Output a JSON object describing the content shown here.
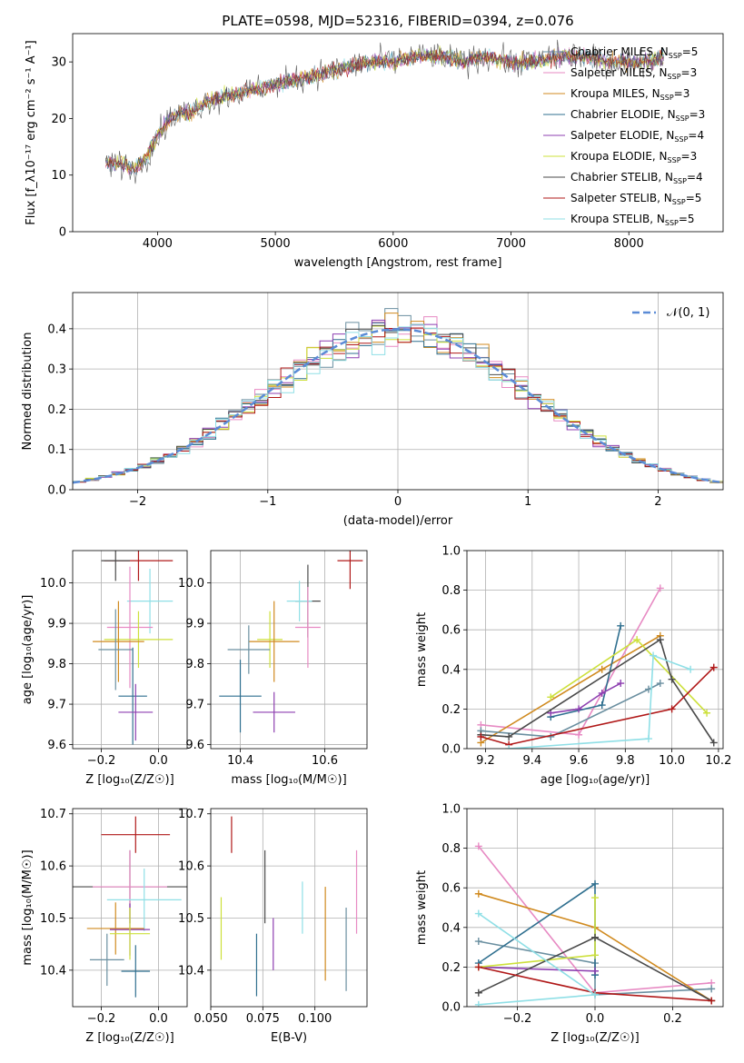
{
  "title": "PLATE=0598, MJD=52316, FIBERID=0394, z=0.076",
  "colors": [
    "#6a8fa0",
    "#e78ac3",
    "#d08a1f",
    "#2f6f8f",
    "#8d3fb0",
    "#cde03b",
    "#4a4a4a",
    "#b01818",
    "#8fdfe6"
  ],
  "chart_data": [
    {
      "id": "spectrum",
      "type": "line",
      "xlabel": "wavelength [Angstrom, rest frame]",
      "ylabel": "Flux [f_λ10⁻¹⁷ erg cm⁻² s⁻¹ A⁻¹]",
      "xlim": [
        3280,
        8800
      ],
      "ylim": [
        0,
        35
      ],
      "xticks": [
        4000,
        5000,
        6000,
        7000,
        8000
      ],
      "yticks": [
        0,
        10,
        20,
        30
      ],
      "grid": false,
      "legend_position": "right",
      "continuum_points": [
        [
          3560,
          12
        ],
        [
          3700,
          12
        ],
        [
          3800,
          11
        ],
        [
          3900,
          13
        ],
        [
          4000,
          17
        ],
        [
          4100,
          20
        ],
        [
          4200,
          21
        ],
        [
          4300,
          21
        ],
        [
          4400,
          23
        ],
        [
          4600,
          24
        ],
        [
          4800,
          25
        ],
        [
          5000,
          26
        ],
        [
          5200,
          27
        ],
        [
          5400,
          28
        ],
        [
          5600,
          29
        ],
        [
          5800,
          30
        ],
        [
          6000,
          30
        ],
        [
          6200,
          31
        ],
        [
          6400,
          31
        ],
        [
          6600,
          30
        ],
        [
          6800,
          31
        ],
        [
          7000,
          30
        ],
        [
          7200,
          30
        ],
        [
          7400,
          31
        ],
        [
          7600,
          31
        ],
        [
          7800,
          30
        ],
        [
          8000,
          30
        ],
        [
          8200,
          30
        ],
        [
          8300,
          31
        ]
      ],
      "series": [
        {
          "name": "Chabrier MILES",
          "n_ssp": "5",
          "color": "#6a8fa0"
        },
        {
          "name": "Salpeter MILES",
          "n_ssp": "3",
          "color": "#e78ac3"
        },
        {
          "name": "Kroupa MILES",
          "n_ssp": "3",
          "color": "#d08a1f"
        },
        {
          "name": "Chabrier ELODIE",
          "n_ssp": "3",
          "color": "#2f6f8f"
        },
        {
          "name": "Salpeter ELODIE",
          "n_ssp": "4",
          "color": "#8d3fb0"
        },
        {
          "name": "Kroupa ELODIE",
          "n_ssp": "3",
          "color": "#cde03b"
        },
        {
          "name": "Chabrier STELIB",
          "n_ssp": "4",
          "color": "#4a4a4a"
        },
        {
          "name": "Salpeter STELIB",
          "n_ssp": "5",
          "color": "#b01818"
        },
        {
          "name": "Kroupa STELIB",
          "n_ssp": "5",
          "color": "#8fdfe6"
        }
      ]
    },
    {
      "id": "residuals",
      "type": "histogram",
      "xlabel": "(data-model)/error",
      "ylabel": "Normed distribution",
      "xlim": [
        -2.5,
        2.5
      ],
      "ylim": [
        0,
        0.49
      ],
      "xticks": [
        -2,
        -1,
        0,
        1,
        2
      ],
      "yticks": [
        0.0,
        0.1,
        0.2,
        0.3,
        0.4
      ],
      "grid": true,
      "legend_position": "top-right",
      "legend_label": "𝒩(0, 1)",
      "bin_width": 0.1
    },
    {
      "id": "age_vs_Z",
      "type": "errorbar",
      "xlabel": "Z [log₁₀(Z/Z☉)]",
      "ylabel": "age  [log₁₀(age/yr)]",
      "xlim": [
        -0.3,
        0.1
      ],
      "ylim": [
        9.59,
        10.08
      ],
      "xticks": [
        -0.2,
        0.0
      ],
      "yticks": [
        9.6,
        9.7,
        9.8,
        9.9,
        10.0
      ],
      "grid": true,
      "points": [
        {
          "series": "Salpeter STELIB",
          "x": -0.07,
          "xerr": 0.12,
          "y": 10.055,
          "yerr": 0.05
        },
        {
          "series": "Chabrier STELIB",
          "x": -0.15,
          "xerr": 0.05,
          "y": 10.055,
          "yerr": 0.05
        },
        {
          "series": "Kroupa STELIB",
          "x": -0.03,
          "xerr": 0.08,
          "y": 9.955,
          "yerr": 0.08
        },
        {
          "series": "Salpeter MILES",
          "x": -0.1,
          "xerr": 0.08,
          "y": 9.89,
          "yerr": 0.15
        },
        {
          "series": "Kroupa ELODIE",
          "x": -0.07,
          "xerr": 0.12,
          "y": 9.86,
          "yerr": 0.07
        },
        {
          "series": "Kroupa MILES",
          "x": -0.14,
          "xerr": 0.09,
          "y": 9.855,
          "yerr": 0.1
        },
        {
          "series": "Chabrier MILES",
          "x": -0.15,
          "xerr": 0.06,
          "y": 9.835,
          "yerr": 0.1
        },
        {
          "series": "Chabrier ELODIE",
          "x": -0.09,
          "xerr": 0.05,
          "y": 9.72,
          "yerr": 0.12
        },
        {
          "series": "Salpeter ELODIE",
          "x": -0.08,
          "xerr": 0.06,
          "y": 9.68,
          "yerr": 0.07
        }
      ]
    },
    {
      "id": "age_vs_mass",
      "type": "errorbar",
      "xlabel": "mass [log₁₀(M/M☉)]",
      "ylabel": "",
      "xlim": [
        10.33,
        10.7
      ],
      "ylim": [
        9.59,
        10.08
      ],
      "xticks": [
        10.4,
        10.6
      ],
      "yticks": [
        9.6,
        9.7,
        9.8,
        9.9,
        10.0
      ],
      "grid": true,
      "points": [
        {
          "series": "Salpeter STELIB",
          "x": 10.66,
          "xerr": 0.03,
          "y": 10.055,
          "yerr": 0.07
        },
        {
          "series": "Chabrier STELIB",
          "x": 10.56,
          "xerr": 0.03,
          "y": 9.955,
          "yerr": 0.09
        },
        {
          "series": "Kroupa STELIB",
          "x": 10.54,
          "xerr": 0.03,
          "y": 9.955,
          "yerr": 0.05
        },
        {
          "series": "Salpeter MILES",
          "x": 10.56,
          "xerr": 0.03,
          "y": 9.89,
          "yerr": 0.1
        },
        {
          "series": "Kroupa ELODIE",
          "x": 10.47,
          "xerr": 0.03,
          "y": 9.86,
          "yerr": 0.07
        },
        {
          "series": "Kroupa MILES",
          "x": 10.48,
          "xerr": 0.06,
          "y": 9.855,
          "yerr": 0.1
        },
        {
          "series": "Chabrier MILES",
          "x": 10.42,
          "xerr": 0.05,
          "y": 9.835,
          "yerr": 0.06
        },
        {
          "series": "Chabrier ELODIE",
          "x": 10.4,
          "xerr": 0.05,
          "y": 9.72,
          "yerr": 0.09
        },
        {
          "series": "Salpeter ELODIE",
          "x": 10.48,
          "xerr": 0.05,
          "y": 9.68,
          "yerr": 0.05
        }
      ]
    },
    {
      "id": "weight_vs_age",
      "type": "line",
      "xlabel": "age  [log₁₀(age/yr)]",
      "ylabel": "mass weight",
      "xlim": [
        9.12,
        10.22
      ],
      "ylim": [
        0,
        1
      ],
      "xticks": [
        9.2,
        9.4,
        9.6,
        9.8,
        10.0,
        10.2
      ],
      "yticks": [
        0.0,
        0.2,
        0.4,
        0.6,
        0.8,
        1.0
      ],
      "grid": true,
      "series": [
        {
          "series": "Salpeter MILES",
          "points": [
            [
              9.18,
              0.12
            ],
            [
              9.6,
              0.07
            ],
            [
              9.95,
              0.81
            ]
          ]
        },
        {
          "series": "Kroupa MILES",
          "points": [
            [
              9.18,
              0.03
            ],
            [
              9.7,
              0.4
            ],
            [
              9.95,
              0.57
            ]
          ]
        },
        {
          "series": "Chabrier MILES",
          "points": [
            [
              9.18,
              0.09
            ],
            [
              9.48,
              0.06
            ],
            [
              9.9,
              0.3
            ],
            [
              9.95,
              0.33
            ]
          ]
        },
        {
          "series": "Chabrier ELODIE",
          "points": [
            [
              9.48,
              0.16
            ],
            [
              9.7,
              0.22
            ],
            [
              9.78,
              0.62
            ]
          ]
        },
        {
          "series": "Salpeter ELODIE",
          "points": [
            [
              9.48,
              0.18
            ],
            [
              9.6,
              0.2
            ],
            [
              9.7,
              0.28
            ],
            [
              9.78,
              0.33
            ]
          ]
        },
        {
          "series": "Kroupa ELODIE",
          "points": [
            [
              9.48,
              0.26
            ],
            [
              9.85,
              0.55
            ],
            [
              10.15,
              0.18
            ]
          ]
        },
        {
          "series": "Chabrier STELIB",
          "points": [
            [
              9.18,
              0.07
            ],
            [
              9.3,
              0.06
            ],
            [
              9.95,
              0.55
            ],
            [
              10.0,
              0.35
            ],
            [
              10.18,
              0.03
            ]
          ]
        },
        {
          "series": "Salpeter STELIB",
          "points": [
            [
              9.18,
              0.06
            ],
            [
              9.3,
              0.02
            ],
            [
              10.0,
              0.2
            ],
            [
              10.18,
              0.41
            ]
          ]
        },
        {
          "series": "Kroupa STELIB",
          "points": [
            [
              9.3,
              0.0
            ],
            [
              9.9,
              0.05
            ],
            [
              9.92,
              0.47
            ],
            [
              10.08,
              0.4
            ]
          ]
        }
      ]
    },
    {
      "id": "mass_vs_Z",
      "type": "errorbar",
      "xlabel": "Z [log₁₀(Z/Z☉)]",
      "ylabel": "mass [log₁₀(M/M☉)]",
      "xlim": [
        -0.3,
        0.1
      ],
      "ylim": [
        10.33,
        10.71
      ],
      "xticks": [
        -0.2,
        0.0
      ],
      "yticks": [
        10.4,
        10.5,
        10.6,
        10.7
      ],
      "grid": true,
      "points": [
        {
          "series": "Salpeter STELIB",
          "x": -0.08,
          "xerr": 0.12,
          "y": 10.66,
          "yerr": 0.035
        },
        {
          "series": "Chabrier STELIB",
          "x": -0.1,
          "xerr": 0.2,
          "y": 10.56,
          "yerr": 0.07
        },
        {
          "series": "Salpeter MILES",
          "x": -0.1,
          "xerr": 0.13,
          "y": 10.56,
          "yerr": 0.07
        },
        {
          "series": "Kroupa STELIB",
          "x": -0.05,
          "xerr": 0.13,
          "y": 10.535,
          "yerr": 0.06
        },
        {
          "series": "Kroupa MILES",
          "x": -0.15,
          "xerr": 0.1,
          "y": 10.48,
          "yerr": 0.05
        },
        {
          "series": "Salpeter ELODIE",
          "x": -0.1,
          "xerr": 0.07,
          "y": 10.478,
          "yerr": 0.05
        },
        {
          "series": "Kroupa ELODIE",
          "x": -0.1,
          "xerr": 0.07,
          "y": 10.47,
          "yerr": 0.05
        },
        {
          "series": "Chabrier MILES",
          "x": -0.18,
          "xerr": 0.06,
          "y": 10.42,
          "yerr": 0.05
        },
        {
          "series": "Chabrier ELODIE",
          "x": -0.08,
          "xerr": 0.05,
          "y": 10.398,
          "yerr": 0.05
        }
      ]
    },
    {
      "id": "mass_vs_ebv",
      "type": "errorbar",
      "xlabel": "E(B-V)",
      "ylabel": "",
      "xlim": [
        0.05,
        0.125
      ],
      "ylim": [
        10.33,
        10.71
      ],
      "xticks": [
        0.05,
        0.075,
        0.1
      ],
      "yticks": [
        10.4,
        10.5,
        10.6,
        10.7
      ],
      "grid": true,
      "points": [
        {
          "series": "Kroupa ELODIE",
          "x": 0.055,
          "xerr": 0.0,
          "y": 10.48,
          "yerr": 0.06
        },
        {
          "series": "Salpeter STELIB",
          "x": 0.06,
          "xerr": 0.0,
          "y": 10.66,
          "yerr": 0.035
        },
        {
          "series": "Chabrier ELODIE",
          "x": 0.072,
          "xerr": 0.0,
          "y": 10.41,
          "yerr": 0.06
        },
        {
          "series": "Chabrier STELIB",
          "x": 0.076,
          "xerr": 0.0,
          "y": 10.56,
          "yerr": 0.07
        },
        {
          "series": "Salpeter ELODIE",
          "x": 0.08,
          "xerr": 0.0,
          "y": 10.45,
          "yerr": 0.05
        },
        {
          "series": "Kroupa STELIB",
          "x": 0.094,
          "xerr": 0.0,
          "y": 10.52,
          "yerr": 0.05
        },
        {
          "series": "Kroupa MILES",
          "x": 0.105,
          "xerr": 0.0,
          "y": 10.47,
          "yerr": 0.09
        },
        {
          "series": "Chabrier MILES",
          "x": 0.115,
          "xerr": 0.0,
          "y": 10.44,
          "yerr": 0.08
        },
        {
          "series": "Salpeter MILES",
          "x": 0.12,
          "xerr": 0.0,
          "y": 10.55,
          "yerr": 0.08
        }
      ]
    },
    {
      "id": "weight_vs_Z",
      "type": "line",
      "xlabel": "Z [log₁₀(Z/Z☉)]",
      "ylabel": "mass weight",
      "xlim": [
        -0.33,
        0.33
      ],
      "ylim": [
        0,
        1
      ],
      "xticks": [
        -0.2,
        0.0,
        0.2
      ],
      "yticks": [
        0.0,
        0.2,
        0.4,
        0.6,
        0.8,
        1.0
      ],
      "grid": true,
      "series": [
        {
          "series": "Salpeter MILES",
          "points": [
            [
              -0.3,
              0.81
            ],
            [
              0.0,
              0.07
            ],
            [
              0.3,
              0.12
            ]
          ]
        },
        {
          "series": "Kroupa MILES",
          "points": [
            [
              -0.3,
              0.57
            ],
            [
              0.0,
              0.4
            ],
            [
              0.3,
              0.03
            ]
          ]
        },
        {
          "series": "Chabrier MILES",
          "points": [
            [
              -0.3,
              0.33
            ],
            [
              0.0,
              0.22
            ],
            [
              0.0,
              0.06
            ],
            [
              0.3,
              0.09
            ]
          ]
        },
        {
          "series": "Chabrier ELODIE",
          "points": [
            [
              -0.3,
              0.22
            ],
            [
              0.0,
              0.62
            ],
            [
              0.0,
              0.16
            ]
          ]
        },
        {
          "series": "Salpeter ELODIE",
          "points": [
            [
              -0.3,
              0.2
            ],
            [
              0.0,
              0.18
            ]
          ]
        },
        {
          "series": "Kroupa ELODIE",
          "points": [
            [
              -0.3,
              0.2
            ],
            [
              0.0,
              0.26
            ],
            [
              0.0,
              0.55
            ]
          ]
        },
        {
          "series": "Chabrier STELIB",
          "points": [
            [
              -0.3,
              0.07
            ],
            [
              0.0,
              0.35
            ],
            [
              0.3,
              0.03
            ]
          ]
        },
        {
          "series": "Salpeter STELIB",
          "points": [
            [
              -0.3,
              0.2
            ],
            [
              0.0,
              0.07
            ],
            [
              0.3,
              0.03
            ]
          ]
        },
        {
          "series": "Kroupa STELIB",
          "points": [
            [
              -0.3,
              0.01
            ],
            [
              0.0,
              0.06
            ],
            [
              -0.3,
              0.47
            ]
          ]
        }
      ]
    }
  ]
}
